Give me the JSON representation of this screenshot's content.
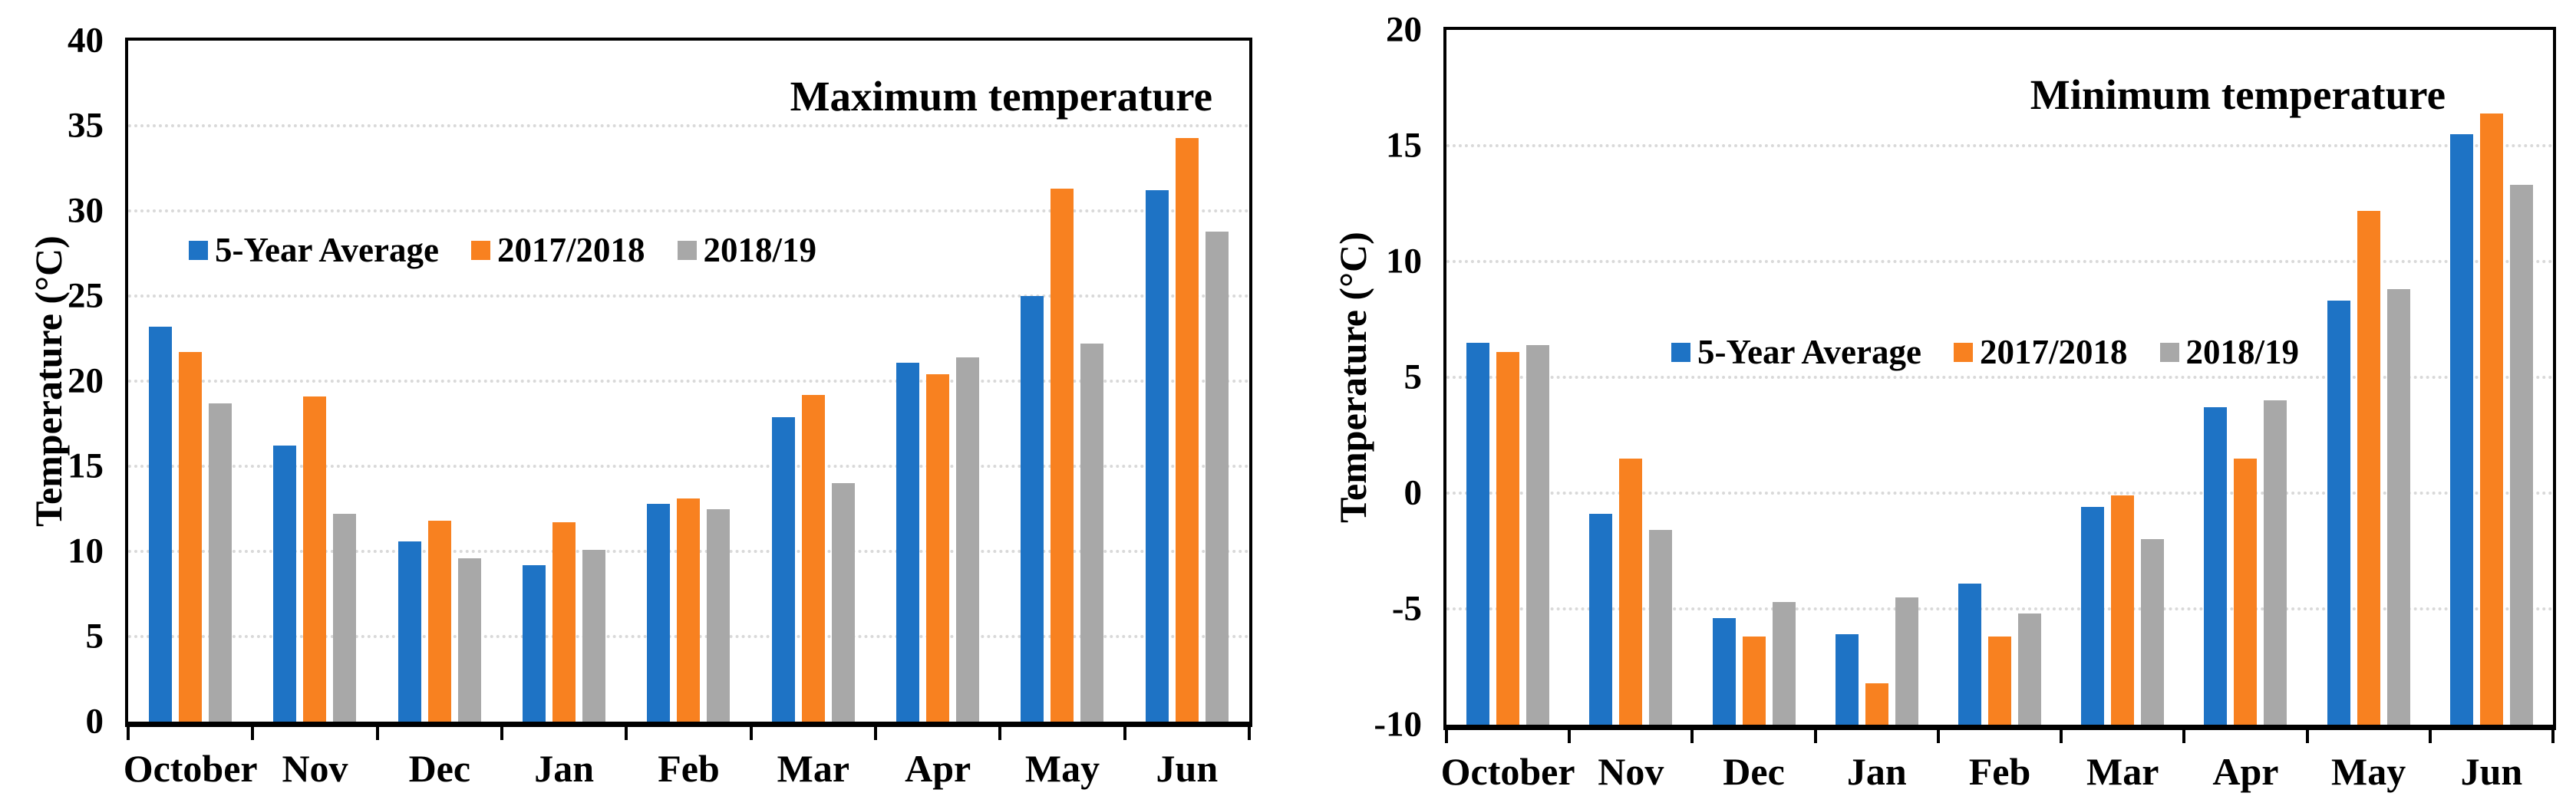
{
  "colors": {
    "background": "#FFFFFF",
    "axis": "#000000",
    "gridline": "#D9D9D9",
    "series_blue": "#1E73C5",
    "series_orange": "#F88120",
    "series_gray": "#A8A8A8"
  },
  "legend_labels": [
    "5-Year Average",
    "2017/2018",
    "2018/19"
  ],
  "chart_data": [
    {
      "type": "bar",
      "title": "Maximum temperature",
      "ylabel": "Temperature (°C)",
      "xlabel": "",
      "categories": [
        "October",
        "Nov",
        "Dec",
        "Jan",
        "Feb",
        "Mar",
        "Apr",
        "May",
        "Jun"
      ],
      "series": [
        {
          "name": "5-Year Average",
          "color": "#1E73C5",
          "values": [
            23.2,
            16.2,
            10.6,
            9.2,
            12.8,
            17.9,
            21.1,
            25.0,
            31.2
          ]
        },
        {
          "name": "2017/2018",
          "color": "#F88120",
          "values": [
            21.7,
            19.1,
            11.8,
            11.7,
            13.1,
            19.2,
            20.4,
            31.3,
            34.3
          ]
        },
        {
          "name": "2018/19",
          "color": "#A8A8A8",
          "values": [
            18.7,
            12.2,
            9.6,
            10.1,
            12.5,
            14.0,
            21.4,
            22.2,
            28.8
          ]
        }
      ],
      "ylim": [
        0,
        40
      ],
      "yticks": [
        40,
        35,
        30,
        25,
        20,
        15,
        10,
        5,
        0
      ],
      "bar_baseline": 0,
      "grid": "horizontal-dotted",
      "legend_position": "inside-upper-left"
    },
    {
      "type": "bar",
      "title": "Minimum temperature",
      "ylabel": "Temperature (°C)",
      "xlabel": "",
      "categories": [
        "October",
        "Nov",
        "Dec",
        "Jan",
        "Feb",
        "Mar",
        "Apr",
        "May",
        "Jun"
      ],
      "series": [
        {
          "name": "5-Year Average",
          "color": "#1E73C5",
          "values": [
            6.5,
            -0.9,
            -5.4,
            -6.1,
            -3.9,
            -0.6,
            3.7,
            8.3,
            15.5
          ]
        },
        {
          "name": "2017/2018",
          "color": "#F88120",
          "values": [
            6.1,
            1.5,
            -6.2,
            -8.2,
            -6.2,
            -0.1,
            1.5,
            12.2,
            16.4
          ]
        },
        {
          "name": "2018/19",
          "color": "#A8A8A8",
          "values": [
            6.4,
            -1.6,
            -4.7,
            -4.5,
            -5.2,
            -2.0,
            4.0,
            8.8,
            13.3
          ]
        }
      ],
      "ylim": [
        -10,
        20
      ],
      "yticks": [
        20,
        15,
        10,
        5,
        0,
        -5,
        -10
      ],
      "bar_baseline": -10,
      "grid": "horizontal-dotted",
      "legend_position": "inside-middle-left"
    }
  ]
}
